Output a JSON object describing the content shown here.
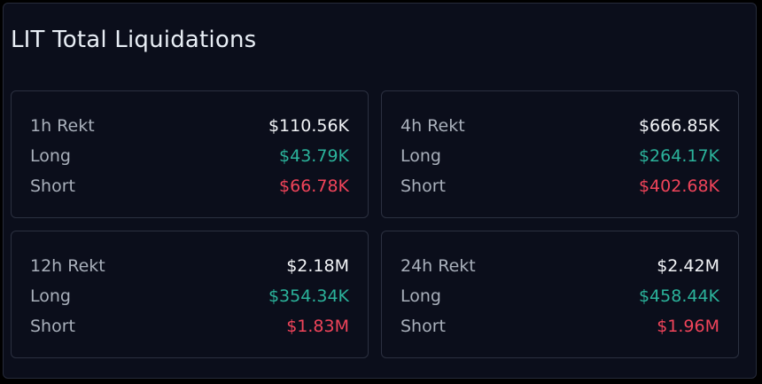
{
  "title": "LIT Total Liquidations",
  "cards": [
    {
      "rows": [
        {
          "label": "1h Rekt",
          "value": "$110.56K"
        },
        {
          "label": "Long",
          "value": "$43.79K"
        },
        {
          "label": "Short",
          "value": "$66.78K"
        }
      ]
    },
    {
      "rows": [
        {
          "label": "4h Rekt",
          "value": "$666.85K"
        },
        {
          "label": "Long",
          "value": "$264.17K"
        },
        {
          "label": "Short",
          "value": "$402.68K"
        }
      ]
    },
    {
      "rows": [
        {
          "label": "12h Rekt",
          "value": "$2.18M"
        },
        {
          "label": "Long",
          "value": "$354.34K"
        },
        {
          "label": "Short",
          "value": "$1.83M"
        }
      ]
    },
    {
      "rows": [
        {
          "label": "24h Rekt",
          "value": "$2.42M"
        },
        {
          "label": "Long",
          "value": "$458.44K"
        },
        {
          "label": "Short",
          "value": "$1.96M"
        }
      ]
    }
  ]
}
